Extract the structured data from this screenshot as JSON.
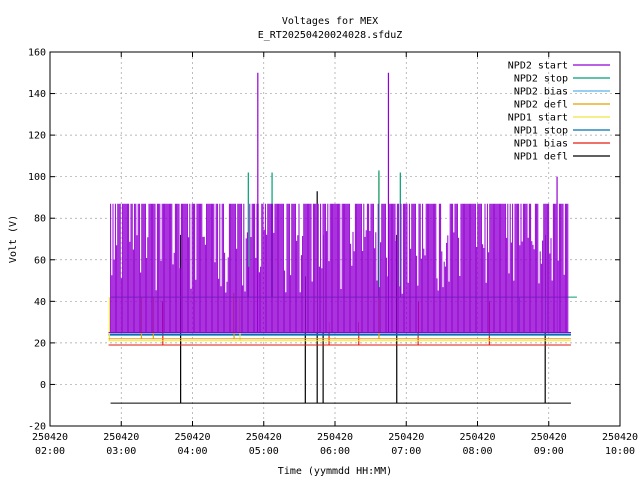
{
  "chart_data": {
    "type": "line",
    "title": "Voltages for MEX",
    "subtitle": "E_RT20250420024028.sfduZ",
    "xlabel": "Time (yymmdd HH:MM)",
    "ylabel": "Volt (V)",
    "xlim": [
      "2025-04-20 02:00",
      "2025-04-20 10:00"
    ],
    "ylim": [
      -20,
      160
    ],
    "grid": true,
    "legend_position": "top-right",
    "x_ticks": [
      {
        "date": "250420",
        "time": "02:00"
      },
      {
        "date": "250420",
        "time": "03:00"
      },
      {
        "date": "250420",
        "time": "04:00"
      },
      {
        "date": "250420",
        "time": "05:00"
      },
      {
        "date": "250420",
        "time": "06:00"
      },
      {
        "date": "250420",
        "time": "07:00"
      },
      {
        "date": "250420",
        "time": "08:00"
      },
      {
        "date": "250420",
        "time": "09:00"
      },
      {
        "date": "250420",
        "time": "10:00"
      }
    ],
    "y_ticks": [
      -20,
      0,
      20,
      40,
      60,
      80,
      100,
      120,
      140,
      160
    ],
    "series": [
      {
        "name": "NPD2 start",
        "color": "#9400d3",
        "baseline": 25,
        "band_max": 87,
        "spikes": [
          {
            "x": "2025-04-20 04:55",
            "y": 150
          },
          {
            "x": "2025-04-20 06:45",
            "y": 150
          },
          {
            "x": "2025-04-20 09:07",
            "y": 100
          }
        ]
      },
      {
        "name": "NPD2 stop",
        "color": "#009e73",
        "baseline": 42,
        "spikes": [
          {
            "x": "2025-04-20 04:47",
            "y": 102
          },
          {
            "x": "2025-04-20 05:07",
            "y": 102
          },
          {
            "x": "2025-04-20 06:37",
            "y": 103
          },
          {
            "x": "2025-04-20 06:55",
            "y": 102
          }
        ]
      },
      {
        "name": "NPD2 bias",
        "color": "#56b4e9",
        "baseline": 25,
        "spikes": [
          {
            "x": "2025-04-20 08:35",
            "y": 42
          },
          {
            "x": "2025-04-20 08:57",
            "y": 42
          }
        ]
      },
      {
        "name": "NPD2 defl",
        "color": "#e69f00",
        "baseline": 22,
        "spikes": [
          {
            "x": "2025-04-20 03:17",
            "y": 42
          },
          {
            "x": "2025-04-20 03:27",
            "y": 42
          },
          {
            "x": "2025-04-20 04:35",
            "y": 44
          },
          {
            "x": "2025-04-20 06:37",
            "y": 102
          }
        ]
      },
      {
        "name": "NPD1 start",
        "color": "#f0e442",
        "baseline": 21,
        "spikes": [
          {
            "x": "2025-04-20 02:50",
            "y": 42
          },
          {
            "x": "2025-04-20 04:40",
            "y": 42
          }
        ]
      },
      {
        "name": "NPD1 stop",
        "color": "#0072b2",
        "baseline": 24,
        "spikes": []
      },
      {
        "name": "NPD1 bias",
        "color": "#e51e10",
        "baseline": 19,
        "spikes": [
          {
            "x": "2025-04-20 03:35",
            "y": 40
          },
          {
            "x": "2025-04-20 05:55",
            "y": 30
          },
          {
            "x": "2025-04-20 06:20",
            "y": 30
          },
          {
            "x": "2025-04-20 07:10",
            "y": 40
          },
          {
            "x": "2025-04-20 08:10",
            "y": 40
          }
        ]
      },
      {
        "name": "NPD1 defl",
        "color": "#000000",
        "baseline": -9,
        "spikes": [
          {
            "x": "2025-04-20 03:50",
            "y": 72
          },
          {
            "x": "2025-04-20 05:35",
            "y": 52
          },
          {
            "x": "2025-04-20 05:45",
            "y": 93
          },
          {
            "x": "2025-04-20 05:50",
            "y": 72
          },
          {
            "x": "2025-04-20 06:52",
            "y": 72
          },
          {
            "x": "2025-04-20 08:57",
            "y": 72
          }
        ]
      }
    ]
  }
}
